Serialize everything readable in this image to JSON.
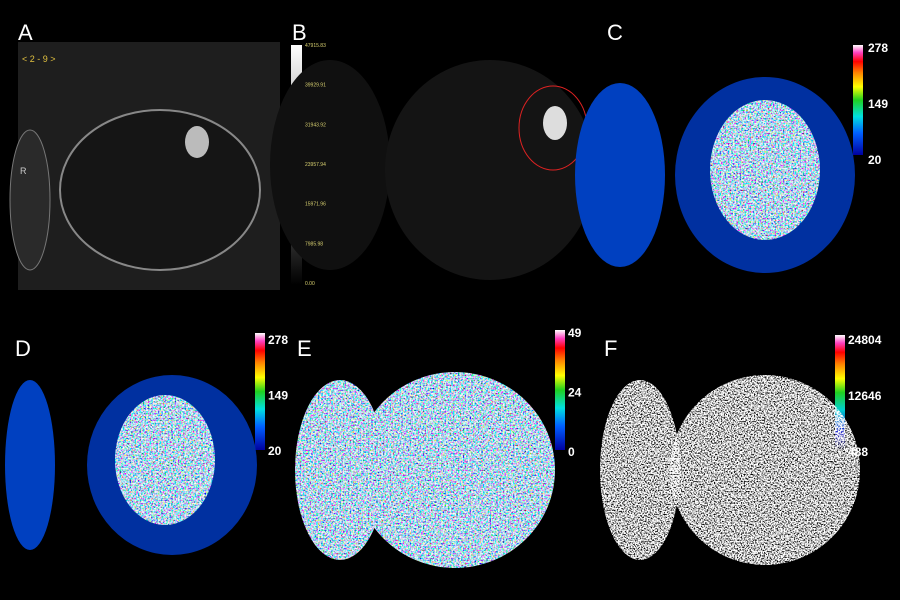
{
  "panels": [
    {
      "label": "A",
      "annotations": [
        "< 2 - 9 >",
        "R"
      ]
    },
    {
      "label": "B",
      "colorbar": [
        "47915.83",
        "39929.91",
        "31943.92",
        "23957.94",
        "15971.96",
        "7985.98",
        "0.00"
      ]
    },
    {
      "label": "C",
      "colorbar": [
        "278",
        "149",
        "20"
      ]
    },
    {
      "label": "D",
      "colorbar": [
        "278",
        "149",
        "20"
      ]
    },
    {
      "label": "E",
      "colorbar": [
        "49",
        "24",
        "0"
      ]
    },
    {
      "label": "F",
      "colorbar": [
        "24804",
        "12646",
        "488"
      ]
    }
  ]
}
